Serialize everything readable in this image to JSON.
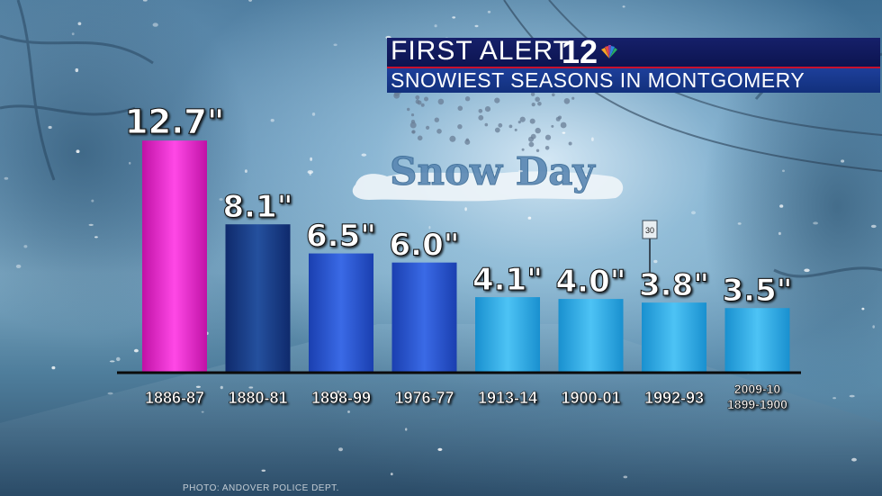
{
  "header": {
    "brand": "FIRST ALERT",
    "brand_number": "12",
    "title": "SNOWIEST SEASONS IN MONTGOMERY"
  },
  "decoration": {
    "snow_day_text": "Snow Day",
    "sign_text": "30"
  },
  "photo_credit": "PHOTO: ANDOVER POLICE DEPT.",
  "colors": {
    "record": "#e81ec8",
    "dark": "#173a8c",
    "medium": "#2452d0",
    "light": "#27a3e2"
  },
  "chart_data": {
    "type": "bar",
    "title": "SNOWIEST SEASONS IN MONTGOMERY",
    "categories": [
      "1886-87",
      "1880-81",
      "1898-99",
      "1976-77",
      "1913-14",
      "1900-01",
      "1992-93",
      "2009-10\n1899-1900"
    ],
    "values": [
      12.7,
      8.1,
      6.5,
      6.0,
      4.1,
      4.0,
      3.8,
      3.5
    ],
    "data_labels": [
      "12.7\"",
      "8.1\"",
      "6.5\"",
      "6.0\"",
      "4.1\"",
      "4.0\"",
      "3.8\"",
      "3.5\""
    ],
    "bar_colors": [
      "#e81ec8",
      "#173a8c",
      "#2452d0",
      "#2452d0",
      "#27a3e2",
      "#27a3e2",
      "#27a3e2",
      "#27a3e2"
    ],
    "xlabel": "",
    "ylabel": "",
    "ylim": [
      0,
      13.5
    ],
    "grid": false,
    "legend": "none"
  }
}
